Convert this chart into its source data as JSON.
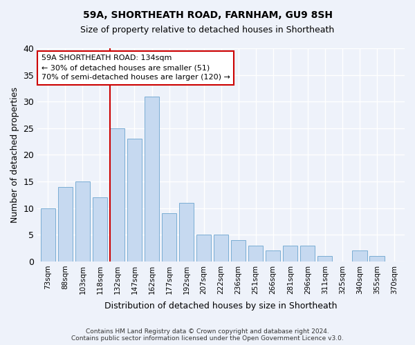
{
  "title1": "59A, SHORTHEATH ROAD, FARNHAM, GU9 8SH",
  "title2": "Size of property relative to detached houses in Shortheath",
  "xlabel": "Distribution of detached houses by size in Shortheath",
  "ylabel": "Number of detached properties",
  "bar_labels": [
    "73sqm",
    "88sqm",
    "103sqm",
    "118sqm",
    "132sqm",
    "147sqm",
    "162sqm",
    "177sqm",
    "192sqm",
    "207sqm",
    "222sqm",
    "236sqm",
    "251sqm",
    "266sqm",
    "281sqm",
    "296sqm",
    "311sqm",
    "325sqm",
    "340sqm",
    "355sqm",
    "370sqm"
  ],
  "bar_values": [
    10,
    14,
    15,
    12,
    25,
    23,
    31,
    9,
    11,
    5,
    5,
    4,
    3,
    2,
    3,
    3,
    1,
    0,
    2,
    1,
    0
  ],
  "bar_color": "#c6d9f0",
  "bar_edge_color": "#7aadd4",
  "vline_index": 4.5,
  "vline_color": "#cc0000",
  "annotation_text": "59A SHORTHEATH ROAD: 134sqm\n← 30% of detached houses are smaller (51)\n70% of semi-detached houses are larger (120) →",
  "annotation_box_color": "#ffffff",
  "annotation_box_edge_color": "#cc0000",
  "ylim": [
    0,
    40
  ],
  "yticks": [
    0,
    5,
    10,
    15,
    20,
    25,
    30,
    35,
    40
  ],
  "footer1": "Contains HM Land Registry data © Crown copyright and database right 2024.",
  "footer2": "Contains public sector information licensed under the Open Government Licence v3.0.",
  "bg_color": "#eef2fa",
  "plot_bg_color": "#eef2fa"
}
